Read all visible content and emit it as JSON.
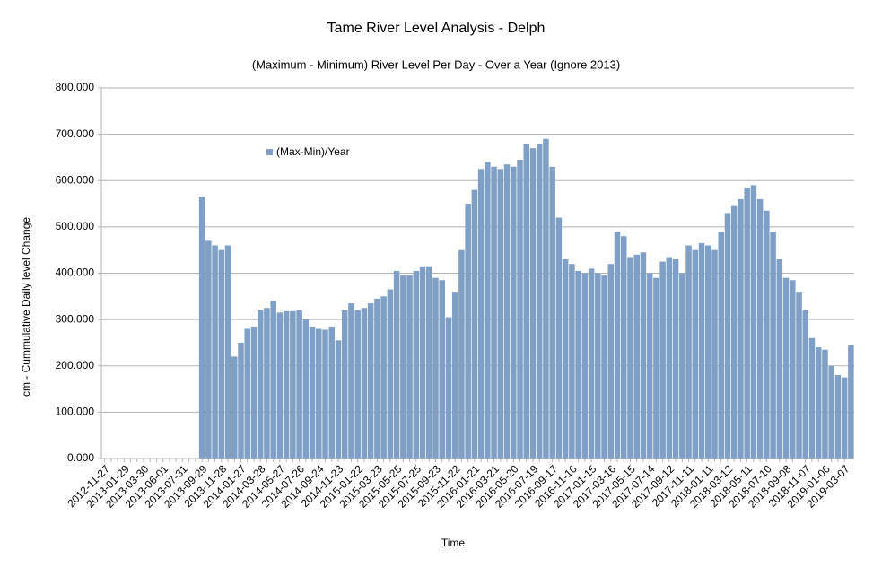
{
  "chart_data": {
    "type": "bar",
    "title": "Tame River Level Analysis - Delph",
    "subtitle": "(Maximum - Minimum) River Level Per Day - Over a Year (Ignore 2013)",
    "x_label": "Time",
    "y_label": "cm - Cummulative Daily level Change",
    "categories": [
      "2012-11-27",
      null,
      null,
      "2013-01-29",
      null,
      null,
      "2013-03-30",
      null,
      null,
      "2013-06-01",
      null,
      null,
      "2013-07-31",
      null,
      null,
      "2013-09-29",
      null,
      null,
      "2013-11-28",
      null,
      null,
      "2014-01-27",
      null,
      null,
      "2014-03-28",
      null,
      null,
      "2014-05-27",
      null,
      null,
      "2014-07-26",
      null,
      null,
      "2014-09-24",
      null,
      null,
      "2014-11-23",
      null,
      null,
      "2015-01-22",
      null,
      null,
      "2015-03-23",
      null,
      null,
      "2015-05-25",
      null,
      null,
      "2015-07-25",
      null,
      null,
      "2015-09-23",
      null,
      null,
      "2015-11-22",
      null,
      null,
      "2016-01-21",
      null,
      null,
      "2016-03-21",
      null,
      null,
      "2016-05-20",
      null,
      null,
      "2016-07-19",
      null,
      null,
      "2016-09-17",
      null,
      null,
      "2016-11-16",
      null,
      null,
      "2017-01-15",
      null,
      null,
      "2017-03-16",
      null,
      null,
      "2017-05-15",
      null,
      null,
      "2017-07-14",
      null,
      null,
      "2017-09-12",
      null,
      null,
      "2017-11-11",
      null,
      null,
      "2018-01-11",
      null,
      null,
      "2018-03-12",
      null,
      null,
      "2018-05-11",
      null,
      null,
      "2018-07-10",
      null,
      null,
      "2018-09-08",
      null,
      null,
      "2018-11-07",
      null,
      null,
      "2019-01-06",
      null,
      null,
      "2019-03-07",
      null
    ],
    "series": [
      {
        "name": "(Max-Min)/Year",
        "color": "#7f9fc6",
        "values": [
          0,
          0,
          0,
          0,
          0,
          0,
          0,
          0,
          0,
          0,
          0,
          0,
          0,
          0,
          0,
          565,
          470,
          460,
          450,
          460,
          220,
          250,
          280,
          285,
          320,
          325,
          340,
          315,
          318,
          318,
          320,
          300,
          285,
          280,
          278,
          285,
          255,
          320,
          335,
          320,
          325,
          335,
          345,
          350,
          365,
          405,
          395,
          395,
          405,
          415,
          415,
          390,
          385,
          305,
          360,
          450,
          550,
          580,
          625,
          640,
          630,
          625,
          635,
          630,
          645,
          680,
          670,
          680,
          690,
          630,
          520,
          430,
          420,
          405,
          400,
          410,
          400,
          395,
          420,
          490,
          480,
          435,
          440,
          445,
          400,
          390,
          425,
          435,
          430,
          400,
          460,
          450,
          465,
          460,
          450,
          490,
          530,
          545,
          560,
          585,
          590,
          560,
          535,
          490,
          430,
          390,
          385,
          360,
          320,
          260,
          240,
          235,
          200,
          180,
          175,
          245
        ]
      }
    ],
    "ylim": [
      0,
      800
    ],
    "yticks": [
      {
        "value": 0,
        "label": "0.000"
      },
      {
        "value": 100,
        "label": "100.000"
      },
      {
        "value": 200,
        "label": "200.000"
      },
      {
        "value": 300,
        "label": "300.000"
      },
      {
        "value": 400,
        "label": "400.000"
      },
      {
        "value": 500,
        "label": "500.000"
      },
      {
        "value": 600,
        "label": "600.000"
      },
      {
        "value": 700,
        "label": "700.000"
      },
      {
        "value": 800,
        "label": "800.000"
      }
    ],
    "grid": true,
    "legend": "top-left"
  }
}
